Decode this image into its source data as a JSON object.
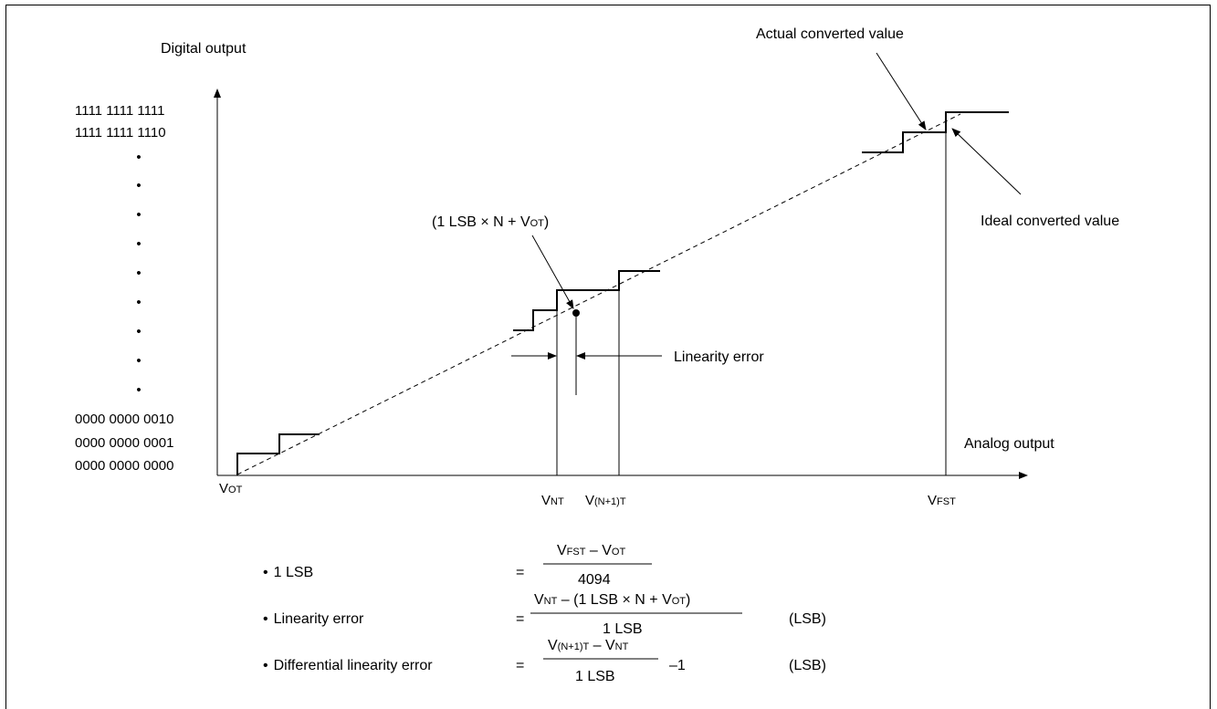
{
  "axis": {
    "y_title": "Digital output",
    "x_title": "Analog output",
    "codes": {
      "top1": "1111 1111 1111",
      "top2": "1111 1111 1110",
      "bot3": "0000 0000 0010",
      "bot2": "0000 0000 0001",
      "bot1": "0000 0000 0000"
    },
    "ellipsis_dot": "•",
    "x_ticks": {
      "vot_main": "V",
      "vot_sub": "OT",
      "vnt_main": "V",
      "vnt_sub": "NT",
      "vn1_main": "V",
      "vn1_sub": "(N+1)T",
      "vfst_main": "V",
      "vfst_sub": "FST"
    }
  },
  "annotations": {
    "actual": "Actual converted value",
    "ideal": "Ideal converted value",
    "linearity_error": "Linearity error",
    "point_pre": "(1 LSB × N + V",
    "point_sub": "OT",
    "point_post": ")"
  },
  "formulas": {
    "bullet": "•",
    "eq": "=",
    "lsb": {
      "label": "1 LSB",
      "num_v1": "V",
      "num_v1_sub": "FST",
      "num_mid": " – V",
      "num_v2_sub": "OT",
      "den": "4094"
    },
    "lin": {
      "label": "Linearity error",
      "num_v1": "V",
      "num_v1_sub": "NT",
      "num_mid": " – (1 LSB × N + V",
      "num_v2_sub": "OT",
      "num_end": ")",
      "den": "1 LSB",
      "unit": "(LSB)"
    },
    "diff": {
      "label": "Differential linearity error",
      "num_v1": "V",
      "num_v1_sub": "(N+1)T",
      "num_mid": " – V",
      "num_v2_sub": "NT",
      "den": "1 LSB",
      "tail": "–1",
      "unit": "(LSB)"
    }
  }
}
